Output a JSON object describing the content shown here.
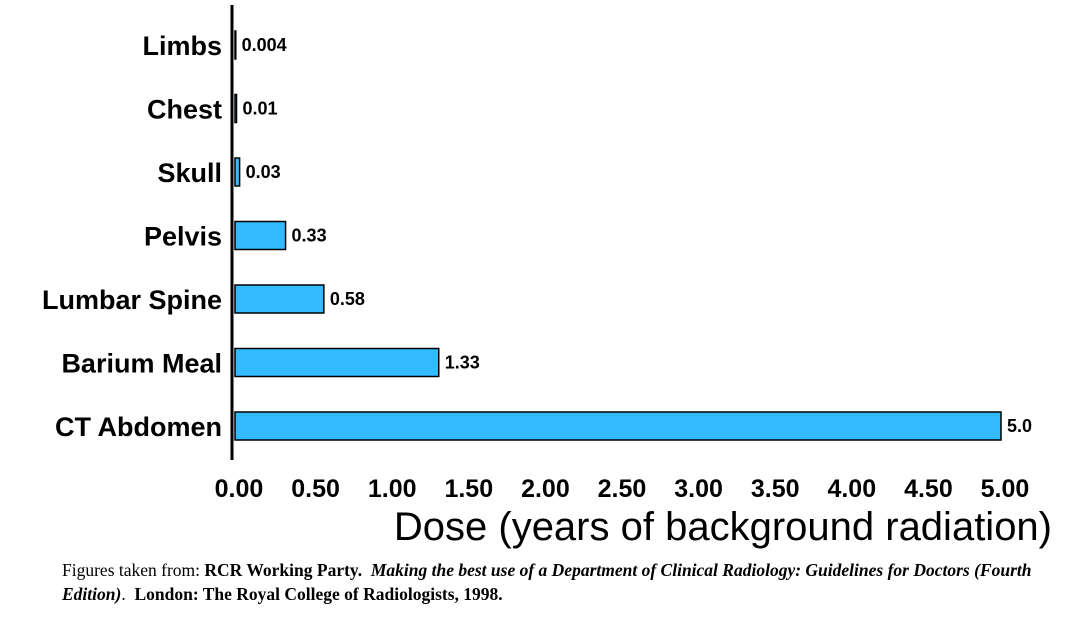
{
  "chart_data": {
    "type": "bar",
    "orientation": "horizontal",
    "categories": [
      "Limbs",
      "Chest",
      "Skull",
      "Pelvis",
      "Lumbar Spine",
      "Barium Meal",
      "CT Abdomen"
    ],
    "values": [
      0.004,
      0.01,
      0.03,
      0.33,
      0.58,
      1.33,
      5.0
    ],
    "value_labels": [
      "0.004",
      "0.01",
      "0.03",
      "0.33",
      "0.58",
      "1.33",
      "5.0"
    ],
    "x_ticks": [
      "0.00",
      "0.50",
      "1.00",
      "1.50",
      "2.00",
      "2.50",
      "3.00",
      "3.50",
      "4.00",
      "4.50",
      "5.00"
    ],
    "xlim": [
      0,
      5
    ],
    "xlabel": "Dose (years of background radiation)",
    "bar_color": "#33bbff",
    "grid": false,
    "legend": "none"
  },
  "caption": {
    "prefix": "Figures taken from: ",
    "source_bold": "RCR Working Party.",
    "title_italic": "Making the best use of a Department of Clinical Radiology: Guidelines for Doctors (Fourth Edition)",
    "period": ".",
    "publisher_bold": "London: The Royal College of Radiologists, 1998."
  }
}
